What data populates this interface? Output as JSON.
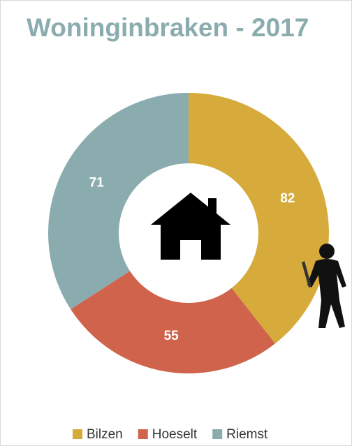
{
  "chart_data": {
    "type": "donut",
    "title": "Woninginbraken - 2017",
    "categories": [
      "Bilzen",
      "Hoeselt",
      "Riemst"
    ],
    "values": [
      82,
      55,
      71
    ],
    "colors": [
      "#d6ab3b",
      "#d0634b",
      "#8bacae"
    ],
    "legend": "bottom"
  }
}
